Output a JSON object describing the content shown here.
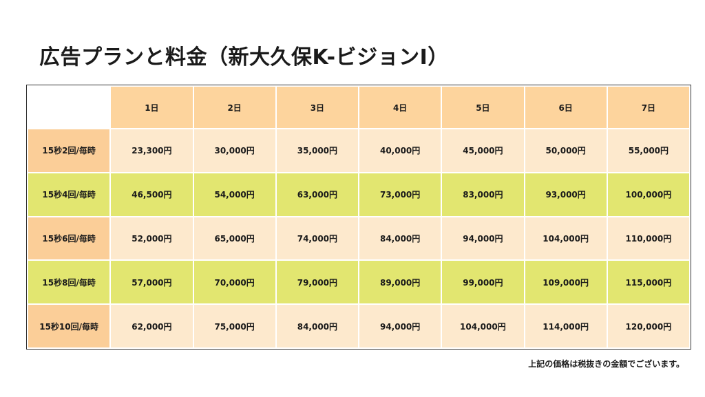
{
  "title": "広告プランと料金（新大久保K-ビジョンⅠ）",
  "colors": {
    "header_orange": "#fdd49d",
    "row_label_orange": "#fbce98",
    "row_light": "#fde9cd",
    "row_green": "#e2e670"
  },
  "table": {
    "columns": [
      "1日",
      "2日",
      "3日",
      "4日",
      "5日",
      "6日",
      "7日"
    ],
    "rows": [
      {
        "label": "15秒2回/毎時",
        "values": [
          "23,300円",
          "30,000円",
          "35,000円",
          "40,000円",
          "45,000円",
          "50,000円",
          "55,000円"
        ]
      },
      {
        "label": "15秒4回/毎時",
        "values": [
          "46,500円",
          "54,000円",
          "63,000円",
          "73,000円",
          "83,000円",
          "93,000円",
          "100,000円"
        ]
      },
      {
        "label": "15秒6回/毎時",
        "values": [
          "52,000円",
          "65,000円",
          "74,000円",
          "84,000円",
          "94,000円",
          "104,000円",
          "110,000円"
        ]
      },
      {
        "label": "15秒8回/毎時",
        "values": [
          "57,000円",
          "70,000円",
          "79,000円",
          "89,000円",
          "99,000円",
          "109,000円",
          "115,000円"
        ]
      },
      {
        "label": "15秒10回/毎時",
        "values": [
          "62,000円",
          "75,000円",
          "84,000円",
          "94,000円",
          "104,000円",
          "114,000円",
          "120,000円"
        ]
      }
    ]
  },
  "note": "上記の価格は税抜きの金額でございます。"
}
